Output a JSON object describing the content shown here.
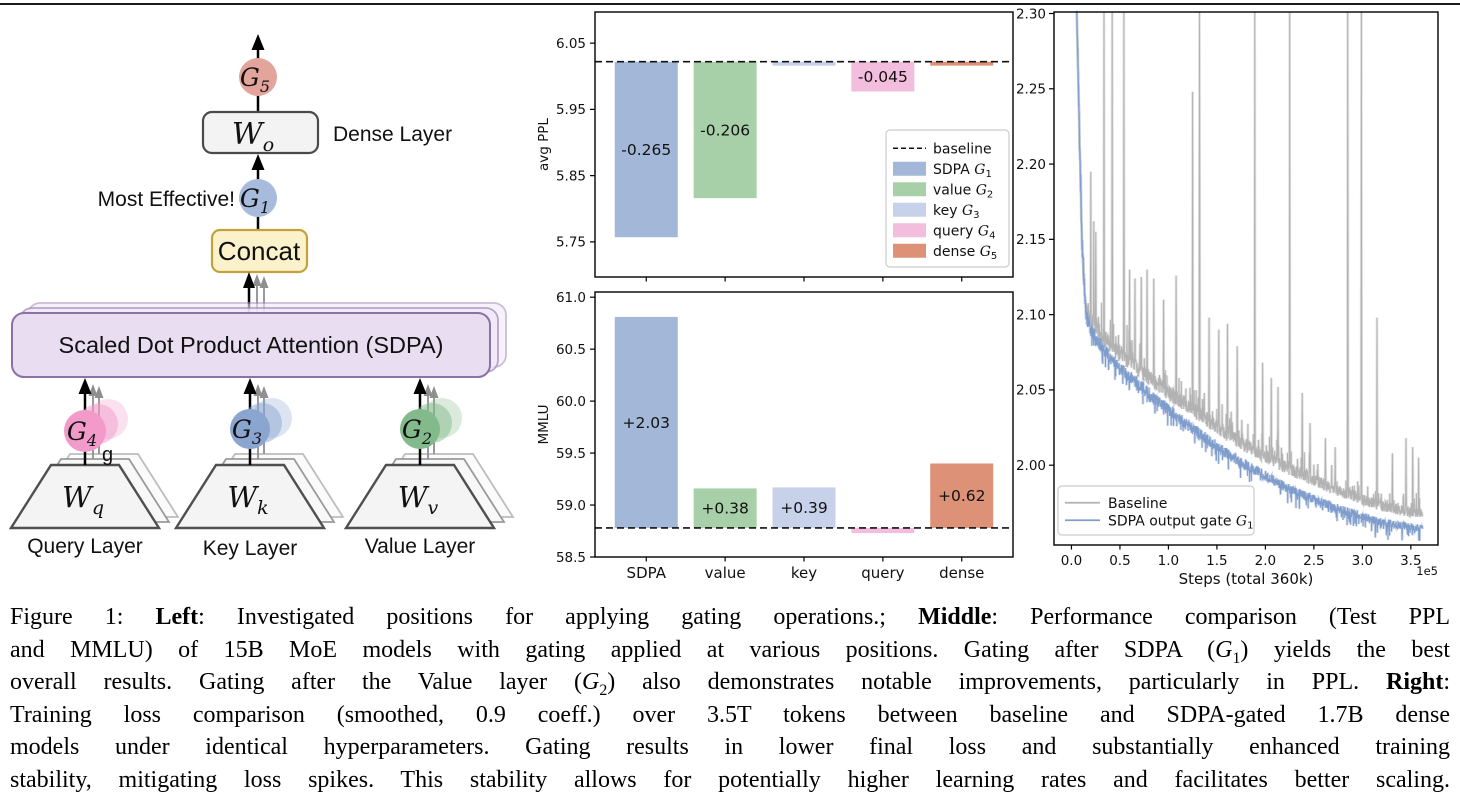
{
  "page": {
    "top_rule_color": "#1a1a1a"
  },
  "diagram": {
    "gates": {
      "g5": {
        "label": "G",
        "sub": "5",
        "fill": "#e3a49c"
      },
      "g1": {
        "label": "G",
        "sub": "1",
        "fill": "#a7bbdd"
      },
      "g4": {
        "label": "G",
        "sub": "4",
        "fill": "#f29aca"
      },
      "g3": {
        "label": "G",
        "sub": "3",
        "fill": "#8ba5d1"
      },
      "g2": {
        "label": "G",
        "sub": "2",
        "fill": "#83ba8c"
      }
    },
    "weights": {
      "wo": {
        "label": "W",
        "sub": "o"
      },
      "wq": {
        "label": "W",
        "sub": "q"
      },
      "wk": {
        "label": "W",
        "sub": "k"
      },
      "wv": {
        "label": "W",
        "sub": "v"
      }
    },
    "annotations": {
      "dense_layer": "Dense Layer",
      "most_effective": "Most Effective!",
      "concat": "Concat",
      "sdpa": "Scaled Dot Product Attention (SDPA)",
      "query_layer": "Query Layer",
      "key_layer": "Key Layer",
      "value_layer": "Value Layer",
      "stray_g": "g"
    },
    "colors": {
      "box_fill": "#f3f3f3",
      "box_border": "#4a4a4a",
      "concat_fill": "#fbf1ca",
      "concat_border": "#c3a23d",
      "sdpa_fill": "#e9ddf1",
      "sdpa_ghost_fill": "#f1e8f7",
      "sdpa_border": "#8a72a5",
      "sdpa_ghost_border": "#a893bd",
      "trap_fill": "#f4f4f4",
      "trap_border": "#4f4f4f"
    }
  },
  "chart_data": [
    {
      "id": "ppl",
      "type": "bar",
      "ylabel": "avg PPL",
      "categories": [
        "SDPA",
        "value",
        "key",
        "query",
        "dense"
      ],
      "values": [
        5.757,
        5.816,
        6.016,
        5.977,
        6.016
      ],
      "baseline": 6.022,
      "bar_labels": [
        "-0.265",
        "-0.206",
        "",
        "-0.045",
        ""
      ],
      "ylim": [
        5.697,
        6.097
      ],
      "yticks": [
        "6.05",
        "5.95",
        "5.85",
        "5.75"
      ],
      "ytick_vals": [
        6.05,
        5.95,
        5.85,
        5.75
      ],
      "colors": [
        "#a3b8d8",
        "#a7d0a9",
        "#c7d2ea",
        "#f3bede",
        "#dd9277"
      ],
      "show_xticklabels": false,
      "legend": {
        "entries": [
          {
            "type": "dash",
            "color": "#111111",
            "text": "baseline"
          },
          {
            "type": "patch",
            "color": "#a3b8d8",
            "text": "SDPA ",
            "math": "G",
            "sub": "1"
          },
          {
            "type": "patch",
            "color": "#a7d0a9",
            "text": "value ",
            "math": "G",
            "sub": "2"
          },
          {
            "type": "patch",
            "color": "#c7d2ea",
            "text": "key ",
            "math": "G",
            "sub": "3"
          },
          {
            "type": "patch",
            "color": "#f3bede",
            "text": "query ",
            "math": "G",
            "sub": "4"
          },
          {
            "type": "patch",
            "color": "#dd9277",
            "text": "dense ",
            "math": "G",
            "sub": "5"
          }
        ]
      }
    },
    {
      "id": "mmlu",
      "type": "bar",
      "ylabel": "MMLU",
      "categories": [
        "SDPA",
        "value",
        "key",
        "query",
        "dense"
      ],
      "values": [
        60.81,
        59.16,
        59.17,
        58.73,
        59.4
      ],
      "baseline": 58.78,
      "bar_labels": [
        "+2.03",
        "+0.38",
        "+0.39",
        "",
        "+0.62"
      ],
      "ylim": [
        58.5,
        61.05
      ],
      "yticks": [
        "61.0",
        "60.5",
        "60.0",
        "59.5",
        "59.0",
        "58.5"
      ],
      "ytick_vals": [
        61.0,
        60.5,
        60.0,
        59.5,
        59.0,
        58.5
      ],
      "colors": [
        "#a3b8d8",
        "#a7d0a9",
        "#c7d2ea",
        "#f3bede",
        "#dd9277"
      ],
      "show_xticklabels": true
    },
    {
      "id": "loss",
      "type": "line",
      "xlabel": "Steps (total 360k)",
      "offset_text": "1e5",
      "xlim": [
        -0.18,
        3.78
      ],
      "ylim": [
        1.947,
        2.301
      ],
      "xticks": [
        "0.0",
        "0.5",
        "1.0",
        "1.5",
        "2.0",
        "2.5",
        "3.0",
        "3.5"
      ],
      "xtick_vals": [
        0,
        0.5,
        1.0,
        1.5,
        2.0,
        2.5,
        3.0,
        3.5
      ],
      "yticks": [
        "2.30",
        "2.25",
        "2.20",
        "2.15",
        "2.10",
        "2.05",
        "2.00"
      ],
      "ytick_vals": [
        2.3,
        2.25,
        2.2,
        2.15,
        2.1,
        2.05,
        2.0
      ],
      "series": [
        {
          "name": "Baseline",
          "color": "#b2b2b2",
          "seed": 11,
          "noise": 0.006,
          "up_spikes": true,
          "x_start": 0.045,
          "x_end": 3.62,
          "trend": [
            [
              0.045,
              2.335
            ],
            [
              0.06,
              2.29
            ],
            [
              0.075,
              2.245
            ],
            [
              0.09,
              2.2
            ],
            [
              0.105,
              2.163
            ],
            [
              0.125,
              2.128
            ],
            [
              0.15,
              2.106
            ],
            [
              0.2,
              2.096
            ],
            [
              0.3,
              2.087
            ],
            [
              0.4,
              2.08
            ],
            [
              0.5,
              2.074
            ],
            [
              0.7,
              2.063
            ],
            [
              0.85,
              2.056
            ],
            [
              1.0,
              2.048
            ],
            [
              1.15,
              2.042
            ],
            [
              1.3,
              2.035
            ],
            [
              1.45,
              2.028
            ],
            [
              1.6,
              2.021
            ],
            [
              1.8,
              2.013
            ],
            [
              2.0,
              2.006
            ],
            [
              2.2,
              1.999
            ],
            [
              2.4,
              1.993
            ],
            [
              2.6,
              1.987
            ],
            [
              2.8,
              1.982
            ],
            [
              3.0,
              1.977
            ],
            [
              3.2,
              1.973
            ],
            [
              3.4,
              1.97
            ],
            [
              3.6,
              1.968
            ]
          ],
          "spikes": [
            [
              0.2,
              2.195
            ],
            [
              0.23,
              2.162
            ],
            [
              0.25,
              2.155
            ],
            [
              0.335,
              2.31
            ],
            [
              0.42,
              2.31
            ],
            [
              0.54,
              2.31
            ],
            [
              0.6,
              2.13
            ],
            [
              0.655,
              2.124
            ],
            [
              0.72,
              2.125
            ],
            [
              0.78,
              2.13
            ],
            [
              0.85,
              2.124
            ],
            [
              0.95,
              2.11
            ],
            [
              1.08,
              2.126
            ],
            [
              1.25,
              2.248
            ],
            [
              1.32,
              2.31
            ],
            [
              1.42,
              2.098
            ],
            [
              1.52,
              2.09
            ],
            [
              1.61,
              2.094
            ],
            [
              1.71,
              2.079
            ],
            [
              1.89,
              2.31
            ],
            [
              1.97,
              2.068
            ],
            [
              2.06,
              2.058
            ],
            [
              2.13,
              2.052
            ],
            [
              2.25,
              2.31
            ],
            [
              2.38,
              2.048
            ],
            [
              2.46,
              2.028
            ],
            [
              2.62,
              2.018
            ],
            [
              2.72,
              2.012
            ],
            [
              2.85,
              2.31
            ],
            [
              2.99,
              2.31
            ],
            [
              3.15,
              2.098
            ],
            [
              3.31,
              2.008
            ],
            [
              3.45,
              2.018
            ],
            [
              3.52,
              2.012
            ],
            [
              3.58,
              2.005
            ]
          ]
        },
        {
          "name": "SDPA output gate G1",
          "legend_text": "SDPA output gate ",
          "math": "G",
          "sub": "1",
          "color": "#7f9dcc",
          "seed": 23,
          "noise": 0.0045,
          "down_dips": true,
          "x_start": 0.045,
          "x_end": 3.62,
          "trend": [
            [
              0.045,
              2.332
            ],
            [
              0.06,
              2.286
            ],
            [
              0.075,
              2.241
            ],
            [
              0.09,
              2.196
            ],
            [
              0.105,
              2.159
            ],
            [
              0.125,
              2.124
            ],
            [
              0.15,
              2.101
            ],
            [
              0.2,
              2.09
            ],
            [
              0.3,
              2.08
            ],
            [
              0.4,
              2.072
            ],
            [
              0.5,
              2.065
            ],
            [
              0.7,
              2.053
            ],
            [
              0.85,
              2.045
            ],
            [
              1.0,
              2.037
            ],
            [
              1.15,
              2.029
            ],
            [
              1.3,
              2.022
            ],
            [
              1.45,
              2.015
            ],
            [
              1.6,
              2.008
            ],
            [
              1.8,
              2.0
            ],
            [
              2.0,
              1.993
            ],
            [
              2.2,
              1.986
            ],
            [
              2.4,
              1.98
            ],
            [
              2.6,
              1.975
            ],
            [
              2.8,
              1.97
            ],
            [
              3.0,
              1.966
            ],
            [
              3.2,
              1.962
            ],
            [
              3.4,
              1.96
            ],
            [
              3.6,
              1.958
            ]
          ]
        }
      ],
      "legend": {
        "entries": [
          {
            "type": "line",
            "color": "#b2b2b2",
            "text": "Baseline"
          },
          {
            "type": "line",
            "color": "#7f9dcc",
            "text": "SDPA output gate ",
            "math": "G",
            "sub": "1"
          }
        ]
      }
    }
  ],
  "caption": {
    "lines": [
      [
        {
          "t": "Figure 1: "
        },
        {
          "t": "Left",
          "b": true
        },
        {
          "t": ": Investigated positions for applying gating operations.; "
        },
        {
          "t": "Middle",
          "b": true
        },
        {
          "t": ": Performance comparison (Test PPL"
        }
      ],
      [
        {
          "t": "and MMLU) of 15B MoE models with gating applied at various positions. Gating after SDPA ("
        },
        {
          "t": "G",
          "i": true
        },
        {
          "t": "1",
          "s": true
        },
        {
          "t": ") yields the best"
        }
      ],
      [
        {
          "t": "overall results. Gating after the Value layer ("
        },
        {
          "t": "G",
          "i": true
        },
        {
          "t": "2",
          "s": true
        },
        {
          "t": ") also demonstrates notable improvements, particularly in PPL. "
        },
        {
          "t": "Right",
          "b": true
        },
        {
          "t": ":"
        }
      ],
      [
        {
          "t": "Training loss comparison (smoothed, 0.9 coeff.) over 3.5T tokens between baseline and SDPA-gated 1.7B dense"
        }
      ],
      [
        {
          "t": "models under identical hyperparameters. Gating results in lower final loss and substantially enhanced training"
        }
      ],
      [
        {
          "t": "stability, mitigating loss spikes. This stability allows for potentially higher learning rates and facilitates better scaling."
        }
      ]
    ]
  }
}
